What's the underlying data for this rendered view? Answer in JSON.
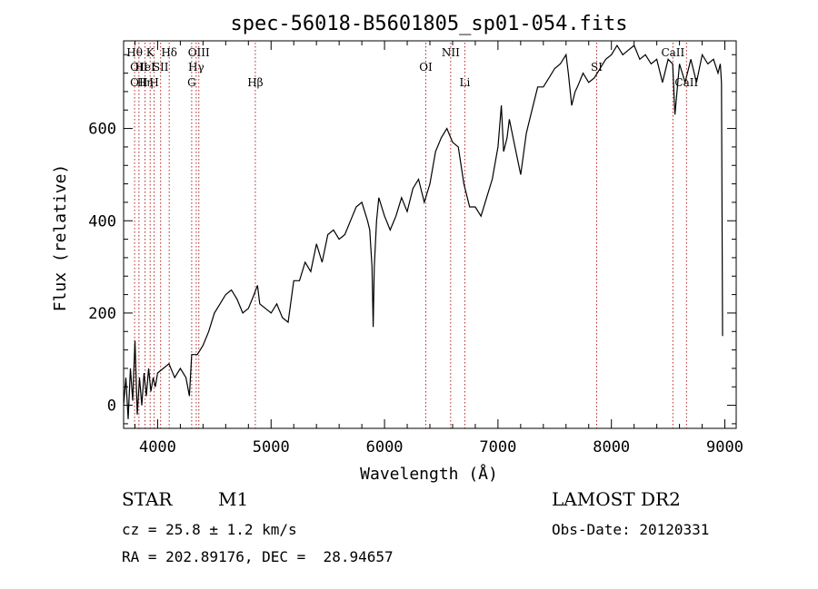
{
  "chart_data": {
    "type": "line",
    "title": "spec-56018-B5601805_sp01-054.fits",
    "xlabel": "Wavelength (Å)",
    "ylabel": "Flux (relative)",
    "xlim": [
      3700,
      9100
    ],
    "ylim": [
      -50,
      790
    ],
    "xticks": [
      4000,
      5000,
      6000,
      7000,
      8000,
      9000
    ],
    "yticks": [
      0,
      200,
      400,
      600
    ],
    "grid": false,
    "series": [
      {
        "x": [
          3700,
          3720,
          3740,
          3760,
          3780,
          3800,
          3820,
          3840,
          3860,
          3880,
          3900,
          3920,
          3940,
          3960,
          3980,
          4000,
          4050,
          4100,
          4150,
          4200,
          4250,
          4280,
          4300,
          4350,
          4400,
          4450,
          4500,
          4550,
          4600,
          4650,
          4700,
          4750,
          4800,
          4850,
          4880,
          4900,
          4950,
          5000,
          5050,
          5100,
          5150,
          5200,
          5250,
          5300,
          5350,
          5400,
          5450,
          5500,
          5550,
          5600,
          5650,
          5700,
          5750,
          5800,
          5850,
          5870,
          5890,
          5900,
          5910,
          5930,
          5950,
          6000,
          6050,
          6100,
          6150,
          6200,
          6250,
          6300,
          6350,
          6400,
          6450,
          6500,
          6550,
          6600,
          6650,
          6700,
          6750,
          6800,
          6850,
          6900,
          6950,
          7000,
          7030,
          7050,
          7080,
          7100,
          7150,
          7200,
          7250,
          7300,
          7350,
          7400,
          7450,
          7500,
          7550,
          7600,
          7620,
          7650,
          7680,
          7700,
          7750,
          7800,
          7850,
          7900,
          7950,
          8000,
          8050,
          8100,
          8150,
          8200,
          8250,
          8300,
          8350,
          8400,
          8450,
          8500,
          8540,
          8560,
          8600,
          8650,
          8700,
          8750,
          8800,
          8850,
          8900,
          8940,
          8960,
          8970,
          8980
        ],
        "y": [
          0,
          60,
          -30,
          80,
          10,
          140,
          -20,
          60,
          0,
          70,
          20,
          80,
          30,
          60,
          40,
          70,
          80,
          90,
          60,
          80,
          60,
          20,
          110,
          110,
          130,
          160,
          200,
          220,
          240,
          250,
          230,
          200,
          210,
          240,
          260,
          220,
          210,
          200,
          220,
          190,
          180,
          270,
          270,
          310,
          290,
          350,
          310,
          370,
          380,
          360,
          370,
          400,
          430,
          440,
          400,
          380,
          300,
          170,
          300,
          400,
          450,
          410,
          380,
          410,
          450,
          420,
          470,
          490,
          440,
          480,
          550,
          580,
          600,
          570,
          560,
          480,
          430,
          430,
          410,
          450,
          490,
          560,
          650,
          550,
          580,
          620,
          560,
          500,
          590,
          640,
          690,
          690,
          710,
          730,
          740,
          760,
          720,
          650,
          680,
          690,
          720,
          700,
          710,
          730,
          750,
          760,
          780,
          760,
          770,
          780,
          750,
          760,
          740,
          750,
          700,
          750,
          740,
          630,
          740,
          700,
          750,
          700,
          760,
          740,
          750,
          720,
          740,
          700,
          150
        ]
      }
    ],
    "lines": [
      {
        "x": 3797,
        "name": "Hθ",
        "row": 1
      },
      {
        "x": 3835,
        "name": "OII",
        "row": 2
      },
      {
        "x": 3835,
        "name": "OII",
        "row": 3
      },
      {
        "x": 3889,
        "name": "Hη",
        "row": 3
      },
      {
        "x": 3889,
        "name": "HeI",
        "row": 2
      },
      {
        "x": 3934,
        "name": "K",
        "row": 1
      },
      {
        "x": 3969,
        "name": "H",
        "row": 3
      },
      {
        "x": 4026,
        "name": "SII",
        "row": 2
      },
      {
        "x": 4102,
        "name": "Hδ",
        "row": 1
      },
      {
        "x": 4300,
        "name": "G",
        "row": 3
      },
      {
        "x": 4340,
        "name": "Hγ",
        "row": 2
      },
      {
        "x": 4363,
        "name": "OIII",
        "row": 1
      },
      {
        "x": 4861,
        "name": "Hβ",
        "row": 3
      },
      {
        "x": 6364,
        "name": "OI",
        "row": 2
      },
      {
        "x": 6583,
        "name": "NII",
        "row": 1
      },
      {
        "x": 6708,
        "name": "Li",
        "row": 3
      },
      {
        "x": 7870,
        "name": "SI",
        "row": 2
      },
      {
        "x": 8542,
        "name": "CaII",
        "row": 1
      },
      {
        "x": 8662,
        "name": "CaII",
        "row": 3
      }
    ]
  },
  "info": {
    "object_class": "STAR",
    "subclass": "M1",
    "survey": "LAMOST DR2",
    "cz": "cz = 25.8 ± 1.2 km/s",
    "obs_date": "Obs-Date: 20120331",
    "coords": "RA = 202.89176, DEC =  28.94657"
  }
}
